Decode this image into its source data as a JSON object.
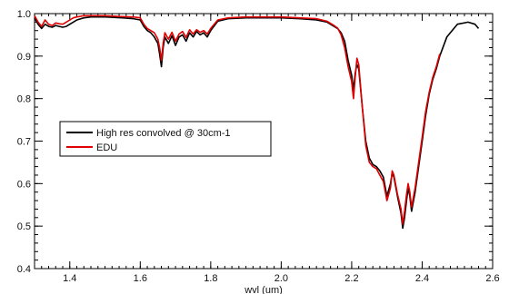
{
  "chart_data": {
    "type": "line",
    "title": "",
    "xlabel": "wvl (um)",
    "ylabel": "",
    "xlim": [
      1.3,
      2.6
    ],
    "ylim": [
      0.4,
      1.0
    ],
    "x_ticks": [
      "1.4",
      "1.6",
      "1.8",
      "2.0",
      "2.2",
      "2.4",
      "2.6"
    ],
    "y_ticks": [
      "0.4",
      "0.5",
      "0.6",
      "0.7",
      "0.8",
      "0.9",
      "1.0"
    ],
    "grid": false,
    "legend": {
      "placement": "left-middle",
      "entries": [
        "High res convolved @ 30cm-1",
        "EDU"
      ]
    },
    "colors": {
      "High res convolved @ 30cm-1": "#000000",
      "EDU": "#e00000"
    },
    "series": [
      {
        "name": "High res convolved @ 30cm-1",
        "color": "#000000",
        "x": [
          1.3,
          1.31,
          1.32,
          1.33,
          1.34,
          1.35,
          1.36,
          1.37,
          1.38,
          1.39,
          1.4,
          1.41,
          1.42,
          1.44,
          1.46,
          1.48,
          1.5,
          1.55,
          1.58,
          1.6,
          1.61,
          1.62,
          1.63,
          1.64,
          1.65,
          1.655,
          1.66,
          1.665,
          1.67,
          1.68,
          1.69,
          1.7,
          1.71,
          1.72,
          1.73,
          1.74,
          1.75,
          1.76,
          1.77,
          1.78,
          1.79,
          1.8,
          1.82,
          1.85,
          1.9,
          2.0,
          2.05,
          2.1,
          2.13,
          2.15,
          2.16,
          2.17,
          2.18,
          2.19,
          2.2,
          2.205,
          2.21,
          2.215,
          2.22,
          2.23,
          2.24,
          2.25,
          2.26,
          2.27,
          2.28,
          2.29,
          2.3,
          2.31,
          2.315,
          2.32,
          2.33,
          2.34,
          2.345,
          2.35,
          2.355,
          2.36,
          2.365,
          2.37,
          2.38,
          2.39,
          2.4,
          2.41,
          2.42,
          2.43,
          2.44,
          2.45,
          2.47,
          2.5,
          2.53,
          2.55,
          2.56
        ],
        "y": [
          0.99,
          0.975,
          0.965,
          0.975,
          0.97,
          0.968,
          0.972,
          0.97,
          0.968,
          0.97,
          0.975,
          0.98,
          0.985,
          0.99,
          0.992,
          0.992,
          0.992,
          0.99,
          0.988,
          0.985,
          0.97,
          0.96,
          0.955,
          0.945,
          0.93,
          0.905,
          0.875,
          0.92,
          0.945,
          0.93,
          0.948,
          0.925,
          0.945,
          0.95,
          0.935,
          0.955,
          0.945,
          0.958,
          0.95,
          0.955,
          0.945,
          0.96,
          0.982,
          0.988,
          0.99,
          0.99,
          0.988,
          0.985,
          0.98,
          0.97,
          0.965,
          0.955,
          0.935,
          0.89,
          0.855,
          0.82,
          0.86,
          0.88,
          0.87,
          0.78,
          0.7,
          0.66,
          0.645,
          0.64,
          0.63,
          0.615,
          0.57,
          0.6,
          0.625,
          0.615,
          0.57,
          0.53,
          0.495,
          0.52,
          0.555,
          0.59,
          0.57,
          0.535,
          0.58,
          0.64,
          0.7,
          0.76,
          0.81,
          0.845,
          0.87,
          0.9,
          0.945,
          0.975,
          0.98,
          0.975,
          0.965
        ]
      },
      {
        "name": "EDU",
        "color": "#e00000",
        "x": [
          1.3,
          1.31,
          1.32,
          1.33,
          1.34,
          1.35,
          1.36,
          1.37,
          1.38,
          1.39,
          1.4,
          1.41,
          1.42,
          1.44,
          1.46,
          1.48,
          1.5,
          1.55,
          1.58,
          1.6,
          1.61,
          1.62,
          1.63,
          1.64,
          1.65,
          1.655,
          1.66,
          1.665,
          1.67,
          1.68,
          1.69,
          1.7,
          1.71,
          1.72,
          1.73,
          1.74,
          1.75,
          1.76,
          1.77,
          1.78,
          1.79,
          1.8,
          1.82,
          1.85,
          1.9,
          2.0,
          2.05,
          2.1,
          2.13,
          2.15,
          2.16,
          2.17,
          2.18,
          2.19,
          2.2,
          2.205,
          2.21,
          2.215,
          2.22,
          2.23,
          2.24,
          2.25,
          2.26,
          2.27,
          2.28,
          2.29,
          2.3,
          2.31,
          2.315,
          2.32,
          2.33,
          2.34,
          2.345,
          2.35,
          2.355,
          2.36,
          2.365,
          2.37,
          2.38,
          2.39,
          2.4,
          2.41,
          2.42,
          2.43,
          2.44,
          2.45
        ],
        "y": [
          0.995,
          0.98,
          0.97,
          0.985,
          0.975,
          0.972,
          0.978,
          0.976,
          0.975,
          0.98,
          0.985,
          0.99,
          0.992,
          0.995,
          0.995,
          0.995,
          0.995,
          0.993,
          0.992,
          0.99,
          0.975,
          0.965,
          0.96,
          0.955,
          0.94,
          0.92,
          0.89,
          0.93,
          0.955,
          0.94,
          0.956,
          0.935,
          0.952,
          0.958,
          0.944,
          0.962,
          0.952,
          0.962,
          0.956,
          0.96,
          0.952,
          0.965,
          0.985,
          0.99,
          0.992,
          0.992,
          0.99,
          0.988,
          0.982,
          0.972,
          0.966,
          0.95,
          0.92,
          0.875,
          0.84,
          0.8,
          0.85,
          0.895,
          0.88,
          0.78,
          0.69,
          0.65,
          0.64,
          0.635,
          0.62,
          0.605,
          0.56,
          0.59,
          0.63,
          0.62,
          0.575,
          0.54,
          0.505,
          0.535,
          0.57,
          0.6,
          0.58,
          0.545,
          0.59,
          0.65,
          0.71,
          0.77,
          0.815,
          0.85,
          0.875,
          0.905
        ]
      }
    ]
  }
}
